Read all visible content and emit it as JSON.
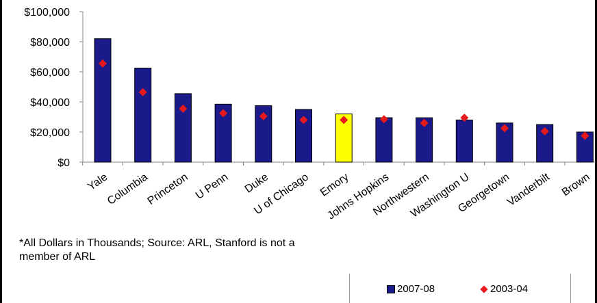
{
  "chart_data": {
    "type": "bar",
    "categories": [
      "Yale",
      "Columbia",
      "Princeton",
      "U Penn",
      "Duke",
      "U of Chicago",
      "Emory",
      "Johns Hopkins",
      "Northwestern",
      "Washington U",
      "Georgetown",
      "Vanderbilt",
      "Brown"
    ],
    "series": [
      {
        "name": "2007-08",
        "type": "bar",
        "values": [
          82000,
          62500,
          45500,
          38500,
          37500,
          35000,
          32000,
          29500,
          29500,
          28000,
          26000,
          25000,
          20000
        ]
      },
      {
        "name": "2003-04",
        "type": "marker",
        "values": [
          65500,
          46500,
          35500,
          32500,
          30500,
          28000,
          28000,
          28500,
          26000,
          29500,
          22500,
          20500,
          17500
        ]
      }
    ],
    "highlight_category": "Emory",
    "yticks": [
      "$100,000",
      "$80,000",
      "$60,000",
      "$40,000",
      "$20,000",
      "$0"
    ],
    "ylim": [
      0,
      100000
    ],
    "grid": false,
    "legend_position": "bottom-right",
    "colors": {
      "bar": "#1b1a8a",
      "highlight_bar": "#ffff00",
      "marker": "#e8191c",
      "axis": "#888888"
    }
  },
  "footnote": "*All Dollars in Thousands; Source: ARL, Stanford is not a member of ARL",
  "legend": {
    "bar_label": "2007-08",
    "marker_label": "2003-04"
  }
}
